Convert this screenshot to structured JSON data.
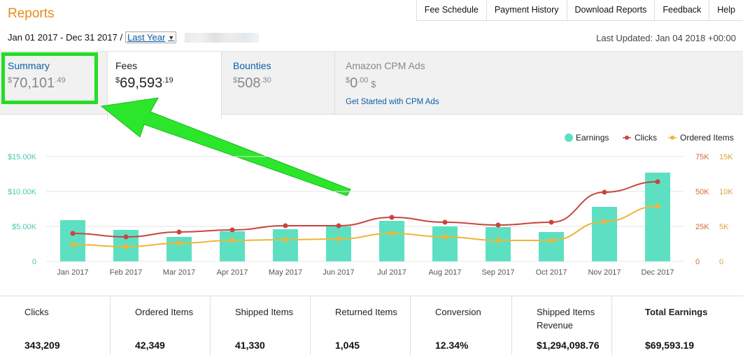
{
  "page": {
    "title": "Reports"
  },
  "topnav": [
    "Fee Schedule",
    "Payment History",
    "Download Reports",
    "Feedback",
    "Help"
  ],
  "daterange": {
    "text": "Jan 01 2017 - Dec 31 2017 /",
    "selected": "Last Year"
  },
  "last_updated": "Last Updated: Jan 04 2018 +00:00",
  "tabs": {
    "summary": {
      "label": "Summary",
      "currency": "$",
      "whole": "70,101",
      "cents": ".49"
    },
    "fees": {
      "label": "Fees",
      "currency": "$",
      "whole": "69,593",
      "cents": ".19"
    },
    "bounties": {
      "label": "Bounties",
      "currency": "$",
      "whole": "508",
      "cents": ".30"
    },
    "cpm": {
      "label": "Amazon CPM Ads",
      "currency": "$",
      "whole": "0",
      "cents": ".00",
      "suffix": " $",
      "link": "Get Started with CPM Ads"
    }
  },
  "chart_data": {
    "type": "bar",
    "categories": [
      "Jan 2017",
      "Feb 2017",
      "Mar 2017",
      "Apr 2017",
      "May 2017",
      "Jun 2017",
      "Jul 2017",
      "Aug 2017",
      "Sep 2017",
      "Oct 2017",
      "Nov 2017",
      "Dec 2017"
    ],
    "legend_position": "top-right",
    "grid": true,
    "series": [
      {
        "name": "Earnings",
        "type": "bar",
        "axis": "left",
        "color": "#5de0c2",
        "values": [
          5900,
          4500,
          3500,
          4300,
          4600,
          5000,
          5800,
          5000,
          4900,
          4200,
          7800,
          12700
        ]
      },
      {
        "name": "Clicks",
        "type": "line",
        "axis": "right1",
        "color": "#c9443f",
        "values": [
          20000,
          17500,
          21000,
          22500,
          25500,
          25500,
          31500,
          28000,
          26000,
          28000,
          49500,
          57000
        ]
      },
      {
        "name": "Ordered Items",
        "type": "line",
        "axis": "right2",
        "color": "#f0b436",
        "values": [
          2400,
          2100,
          2600,
          3000,
          3100,
          3200,
          4000,
          3500,
          3000,
          3000,
          5700,
          7900
        ]
      }
    ],
    "axes": {
      "left": {
        "ticks": [
          "0",
          "$5.00K",
          "$10.00K",
          "$15.00K"
        ],
        "ylim": [
          0,
          15000
        ],
        "color": "#49c9ac"
      },
      "right1": {
        "ticks": [
          "0",
          "25K",
          "50K",
          "75K"
        ],
        "ylim": [
          0,
          75000
        ],
        "color": "#d26a3a"
      },
      "right2": {
        "ticks": [
          "0",
          "5K",
          "10K",
          "15K"
        ],
        "ylim": [
          0,
          15000
        ],
        "color": "#e0a040"
      }
    }
  },
  "stats": [
    {
      "label": "Clicks",
      "value": "343,209"
    },
    {
      "label": "Ordered Items",
      "value": "42,349"
    },
    {
      "label": "Shipped Items",
      "value": "41,330"
    },
    {
      "label": "Returned Items",
      "value": "1,045"
    },
    {
      "label": "Conversion",
      "value": "12.34%"
    },
    {
      "label": "Shipped Items Revenue",
      "value": "$1,294,098.76"
    },
    {
      "label": "Total Earnings",
      "value": "$69,593.19"
    }
  ],
  "annotation": {
    "color": "#22dd22"
  }
}
